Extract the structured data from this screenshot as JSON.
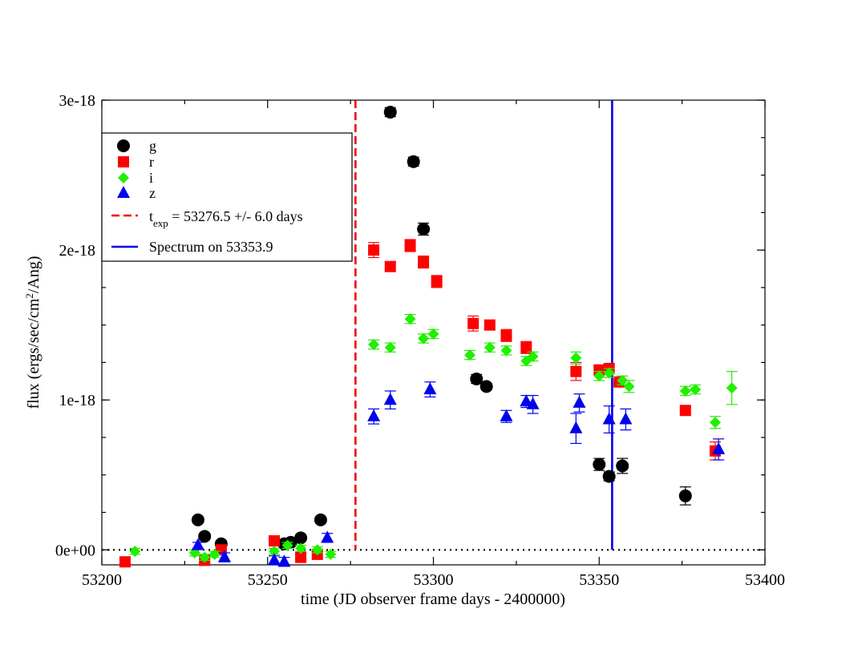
{
  "chart_data": {
    "type": "scatter",
    "title": "",
    "xlabel": "time (JD observer frame days - 2400000)",
    "ylabel": {
      "main": "flux (ergs/sec/cm",
      "sup": "2",
      "tail": "/Ang)"
    },
    "xlim": [
      53200,
      53400
    ],
    "ylim": [
      -1e-19,
      3e-18
    ],
    "xticks": [
      {
        "value": 53200,
        "label": "53200"
      },
      {
        "value": 53250,
        "label": "53250"
      },
      {
        "value": 53300,
        "label": "53300"
      },
      {
        "value": 53350,
        "label": "53350"
      },
      {
        "value": 53400,
        "label": "53400"
      }
    ],
    "yticks": [
      {
        "value": 0,
        "label": "0e+00"
      },
      {
        "value": 1e-18,
        "label": "1e-18"
      },
      {
        "value": 2e-18,
        "label": "2e-18"
      },
      {
        "value": 3e-18,
        "label": "3e-18"
      }
    ],
    "zero_line": {
      "y": 0,
      "style": "dotted"
    },
    "series": [
      {
        "name": "g",
        "marker": "circle",
        "color": "#000000",
        "points": [
          {
            "x": 53229,
            "y": 2e-19,
            "err": 2e-20
          },
          {
            "x": 53231,
            "y": 9e-20,
            "err": 2e-20
          },
          {
            "x": 53236,
            "y": 4e-20,
            "err": 2e-20
          },
          {
            "x": 53255,
            "y": 4e-20,
            "err": 2e-20
          },
          {
            "x": 53257,
            "y": 5e-20,
            "err": 2e-20
          },
          {
            "x": 53260,
            "y": 8e-20,
            "err": 2e-20
          },
          {
            "x": 53266,
            "y": 2e-19,
            "err": 2e-20
          },
          {
            "x": 53287,
            "y": 2.92e-18,
            "err": 3e-20
          },
          {
            "x": 53294,
            "y": 2.59e-18,
            "err": 3e-20
          },
          {
            "x": 53297,
            "y": 2.14e-18,
            "err": 4e-20
          },
          {
            "x": 53313,
            "y": 1.14e-18,
            "err": 3e-20
          },
          {
            "x": 53316,
            "y": 1.09e-18,
            "err": 2e-20
          },
          {
            "x": 53350,
            "y": 5.7e-19,
            "err": 4e-20
          },
          {
            "x": 53353,
            "y": 4.9e-19,
            "err": 3e-20
          },
          {
            "x": 53357,
            "y": 5.6e-19,
            "err": 5e-20
          },
          {
            "x": 53376,
            "y": 3.6e-19,
            "err": 6e-20
          }
        ]
      },
      {
        "name": "r",
        "marker": "square",
        "color": "#ff0000",
        "points": [
          {
            "x": 53207,
            "y": -8e-20,
            "err": 2e-20
          },
          {
            "x": 53231,
            "y": -7e-20,
            "err": 2e-20
          },
          {
            "x": 53236,
            "y": 0.0,
            "err": 2e-20
          },
          {
            "x": 53252,
            "y": 6e-20,
            "err": 2e-20
          },
          {
            "x": 53260,
            "y": -5e-20,
            "err": 2e-20
          },
          {
            "x": 53265,
            "y": -3e-20,
            "err": 2e-20
          },
          {
            "x": 53282,
            "y": 2e-18,
            "err": 5e-20
          },
          {
            "x": 53287,
            "y": 1.89e-18,
            "err": 3e-20
          },
          {
            "x": 53293,
            "y": 2.03e-18,
            "err": 4e-20
          },
          {
            "x": 53297,
            "y": 1.92e-18,
            "err": 4e-20
          },
          {
            "x": 53301,
            "y": 1.79e-18,
            "err": 4e-20
          },
          {
            "x": 53312,
            "y": 1.51e-18,
            "err": 5e-20
          },
          {
            "x": 53317,
            "y": 1.5e-18,
            "err": 3e-20
          },
          {
            "x": 53322,
            "y": 1.43e-18,
            "err": 4e-20
          },
          {
            "x": 53328,
            "y": 1.35e-18,
            "err": 4e-20
          },
          {
            "x": 53343,
            "y": 1.19e-18,
            "err": 6e-20
          },
          {
            "x": 53350,
            "y": 1.2e-18,
            "err": 3e-20
          },
          {
            "x": 53353,
            "y": 1.21e-18,
            "err": 3e-20
          },
          {
            "x": 53356,
            "y": 1.12e-18,
            "err": 3e-20
          },
          {
            "x": 53376,
            "y": 9.3e-19,
            "err": 3e-20
          },
          {
            "x": 53385,
            "y": 6.6e-19,
            "err": 6e-20
          }
        ]
      },
      {
        "name": "i",
        "marker": "diamond",
        "color": "#22ee00",
        "points": [
          {
            "x": 53210,
            "y": -1e-20,
            "err": 2e-20
          },
          {
            "x": 53228,
            "y": -2e-20,
            "err": 2e-20
          },
          {
            "x": 53231,
            "y": -5e-20,
            "err": 2e-20
          },
          {
            "x": 53234,
            "y": -3e-20,
            "err": 2e-20
          },
          {
            "x": 53252,
            "y": -1e-20,
            "err": 2e-20
          },
          {
            "x": 53256,
            "y": 3e-20,
            "err": 2e-20
          },
          {
            "x": 53260,
            "y": 1e-20,
            "err": 2e-20
          },
          {
            "x": 53265,
            "y": 0.0,
            "err": 2e-20
          },
          {
            "x": 53269,
            "y": -3e-20,
            "err": 2e-20
          },
          {
            "x": 53282,
            "y": 1.37e-18,
            "err": 3e-20
          },
          {
            "x": 53287,
            "y": 1.35e-18,
            "err": 3e-20
          },
          {
            "x": 53293,
            "y": 1.54e-18,
            "err": 3e-20
          },
          {
            "x": 53297,
            "y": 1.41e-18,
            "err": 3e-20
          },
          {
            "x": 53300,
            "y": 1.44e-18,
            "err": 3e-20
          },
          {
            "x": 53311,
            "y": 1.3e-18,
            "err": 3e-20
          },
          {
            "x": 53317,
            "y": 1.35e-18,
            "err": 3e-20
          },
          {
            "x": 53322,
            "y": 1.33e-18,
            "err": 3e-20
          },
          {
            "x": 53328,
            "y": 1.26e-18,
            "err": 3e-20
          },
          {
            "x": 53330,
            "y": 1.29e-18,
            "err": 3e-20
          },
          {
            "x": 53343,
            "y": 1.28e-18,
            "err": 4e-20
          },
          {
            "x": 53350,
            "y": 1.16e-18,
            "err": 3e-20
          },
          {
            "x": 53353,
            "y": 1.18e-18,
            "err": 3e-20
          },
          {
            "x": 53357,
            "y": 1.13e-18,
            "err": 3e-20
          },
          {
            "x": 53359,
            "y": 1.09e-18,
            "err": 4e-20
          },
          {
            "x": 53376,
            "y": 1.06e-18,
            "err": 3e-20
          },
          {
            "x": 53379,
            "y": 1.07e-18,
            "err": 3e-20
          },
          {
            "x": 53385,
            "y": 8.5e-19,
            "err": 4e-20
          },
          {
            "x": 53390,
            "y": 1.08e-18,
            "err": 1.1e-19
          }
        ]
      },
      {
        "name": "z",
        "marker": "triangle",
        "color": "#0000ee",
        "points": [
          {
            "x": 53229,
            "y": 3e-20,
            "err": 2e-20
          },
          {
            "x": 53237,
            "y": -5e-20,
            "err": 3e-20
          },
          {
            "x": 53252,
            "y": -7e-20,
            "err": 3e-20
          },
          {
            "x": 53255,
            "y": -8e-20,
            "err": 3e-20
          },
          {
            "x": 53268,
            "y": 8e-20,
            "err": 3e-20
          },
          {
            "x": 53282,
            "y": 8.9e-19,
            "err": 5e-20
          },
          {
            "x": 53287,
            "y": 1e-18,
            "err": 6e-20
          },
          {
            "x": 53299,
            "y": 1.07e-18,
            "err": 5e-20
          },
          {
            "x": 53322,
            "y": 8.9e-19,
            "err": 4e-20
          },
          {
            "x": 53328,
            "y": 9.9e-19,
            "err": 4e-20
          },
          {
            "x": 53330,
            "y": 9.7e-19,
            "err": 6e-20
          },
          {
            "x": 53343,
            "y": 8.1e-19,
            "err": 1e-19
          },
          {
            "x": 53344,
            "y": 9.8e-19,
            "err": 6e-20
          },
          {
            "x": 53353,
            "y": 8.7e-19,
            "err": 9e-20
          },
          {
            "x": 53358,
            "y": 8.7e-19,
            "err": 7e-20
          },
          {
            "x": 53386,
            "y": 6.7e-19,
            "err": 7e-20
          }
        ]
      }
    ],
    "vertical_lines": [
      {
        "x": 53276.5,
        "color": "#ee0000",
        "style": "dashed"
      },
      {
        "x": 53353.9,
        "color": "#0000ee",
        "style": "solid"
      }
    ],
    "legend": {
      "placement": "top-left",
      "entries": [
        {
          "label": "g",
          "marker": "circle",
          "color": "#000000"
        },
        {
          "label": "r",
          "marker": "square",
          "color": "#ff0000"
        },
        {
          "label": "i",
          "marker": "diamond",
          "color": "#22ee00"
        },
        {
          "label": "z",
          "marker": "triangle",
          "color": "#0000ee"
        },
        {
          "label": "t",
          "sub": "exp",
          "tail": " = 53276.5 +/- 6.0 days",
          "marker": "dashed-line",
          "color": "#ee0000"
        },
        {
          "label": "Spectrum on 53353.9",
          "marker": "solid-line",
          "color": "#0000ee"
        }
      ]
    }
  }
}
